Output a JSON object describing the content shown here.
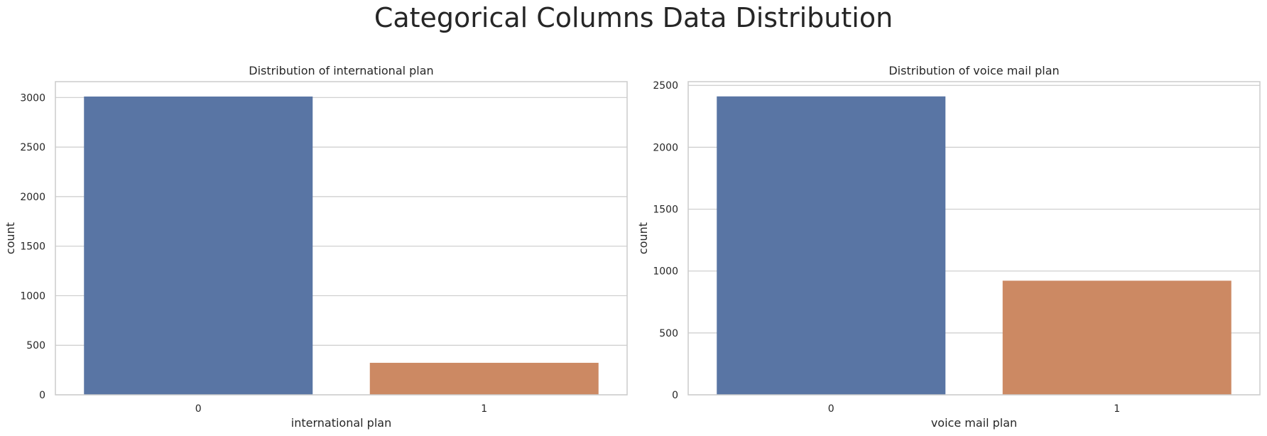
{
  "figure": {
    "suptitle": "Categorical Columns Data Distribution"
  },
  "colors": {
    "bar_0": "#5975a4",
    "bar_1": "#cc8963",
    "grid": "#cccccc",
    "spine": "#cccccc",
    "text": "#262626"
  },
  "chart_data": [
    {
      "type": "bar",
      "title": "Distribution of international plan",
      "xlabel": "international plan",
      "ylabel": "count",
      "categories": [
        "0",
        "1"
      ],
      "values": [
        3010,
        323
      ],
      "ylim": [
        0,
        3160
      ],
      "yticks": [
        0,
        500,
        1000,
        1500,
        2000,
        2500,
        3000
      ],
      "grid": true,
      "legend": "none"
    },
    {
      "type": "bar",
      "title": "Distribution of voice mail plan",
      "xlabel": "voice mail plan",
      "ylabel": "count",
      "categories": [
        "0",
        "1"
      ],
      "values": [
        2411,
        922
      ],
      "ylim": [
        0,
        2530
      ],
      "yticks": [
        0,
        500,
        1000,
        1500,
        2000,
        2500
      ],
      "grid": true,
      "legend": "none"
    }
  ]
}
